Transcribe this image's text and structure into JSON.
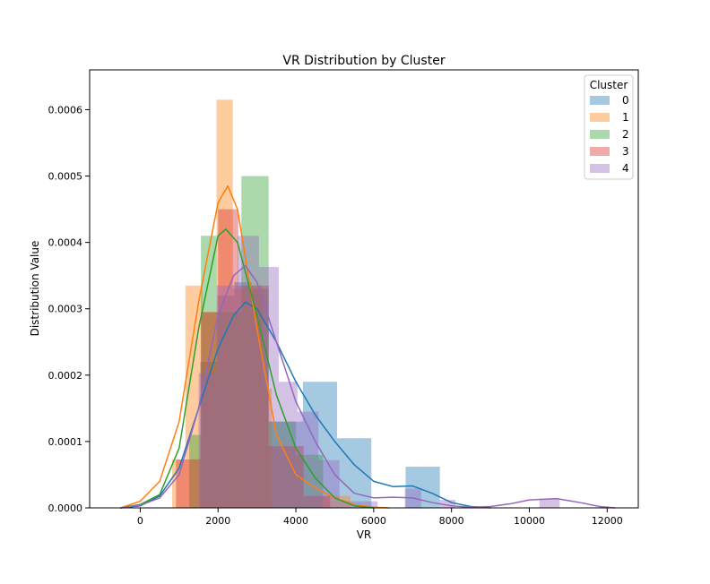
{
  "chart_data": {
    "type": "bar",
    "title": "VR Distribution by Cluster",
    "xlabel": "VR",
    "ylabel": "Distribution Value",
    "xlim": [
      -1300,
      12800
    ],
    "ylim": [
      0,
      0.00066
    ],
    "x_ticks": [
      0,
      2000,
      4000,
      6000,
      8000,
      10000,
      12000
    ],
    "x_tick_labels": [
      "0",
      "2000",
      "4000",
      "6000",
      "8000",
      "10000",
      "12000"
    ],
    "y_ticks": [
      0,
      0.0001,
      0.0002,
      0.0003,
      0.0004,
      0.0005,
      0.0006
    ],
    "y_tick_labels": [
      "0.0000",
      "0.0001",
      "0.0002",
      "0.0003",
      "0.0004",
      "0.0005",
      "0.0006"
    ],
    "grid": false,
    "legend": {
      "title": "Cluster",
      "position": "top-right"
    },
    "series": [
      {
        "name": "0",
        "color": "#1f77b4",
        "hist_bins": [
          {
            "x0": 1540,
            "x1": 1980,
            "y": 0.00022
          },
          {
            "x0": 1980,
            "x1": 2420,
            "y": 0.00032
          },
          {
            "x0": 2420,
            "x1": 2860,
            "y": 0.00034
          },
          {
            "x0": 2860,
            "x1": 3300,
            "y": 0.00033
          },
          {
            "x0": 3300,
            "x1": 4180,
            "y": 0.00013
          },
          {
            "x0": 4180,
            "x1": 5060,
            "y": 0.00019
          },
          {
            "x0": 5060,
            "x1": 5940,
            "y": 0.000105
          },
          {
            "x0": 6820,
            "x1": 7700,
            "y": 6.2e-05
          }
        ],
        "kde": [
          [
            -500,
            0.0
          ],
          [
            0,
            3e-06
          ],
          [
            500,
            1.8e-05
          ],
          [
            1000,
            6e-05
          ],
          [
            1500,
            0.00015
          ],
          [
            2000,
            0.00024
          ],
          [
            2400,
            0.00029
          ],
          [
            2700,
            0.00031
          ],
          [
            3000,
            0.0003
          ],
          [
            3500,
            0.00025
          ],
          [
            4000,
            0.00019
          ],
          [
            4500,
            0.00014
          ],
          [
            5000,
            0.0001
          ],
          [
            5500,
            6.5e-05
          ],
          [
            6000,
            4e-05
          ],
          [
            6500,
            3.2e-05
          ],
          [
            7000,
            3.3e-05
          ],
          [
            7500,
            2.2e-05
          ],
          [
            8000,
            8e-06
          ],
          [
            8500,
            2e-06
          ],
          [
            9000,
            0.0
          ]
        ]
      },
      {
        "name": "1",
        "color": "#ff7f0e",
        "hist_bins": [
          {
            "x0": 820,
            "x1": 1160,
            "y": 7.3e-05
          },
          {
            "x0": 1160,
            "x1": 1600,
            "y": 0.000335
          },
          {
            "x0": 1600,
            "x1": 1960,
            "y": 0.000295
          },
          {
            "x0": 1960,
            "x1": 2380,
            "y": 0.000615
          },
          {
            "x0": 2380,
            "x1": 2720,
            "y": 0.00033
          },
          {
            "x0": 2720,
            "x1": 3140,
            "y": 0.000335
          },
          {
            "x0": 3140,
            "x1": 3380,
            "y": 0.00018
          },
          {
            "x0": 4700,
            "x1": 5400,
            "y": 1.8e-05
          }
        ],
        "kde": [
          [
            -500,
            0.0
          ],
          [
            0,
            1e-05
          ],
          [
            500,
            4e-05
          ],
          [
            1000,
            0.00013
          ],
          [
            1500,
            0.00031
          ],
          [
            2000,
            0.00046
          ],
          [
            2250,
            0.000485
          ],
          [
            2500,
            0.00045
          ],
          [
            3000,
            0.00027
          ],
          [
            3500,
            0.00011
          ],
          [
            4000,
            5e-05
          ],
          [
            4500,
            3e-05
          ],
          [
            5000,
            1.5e-05
          ],
          [
            5500,
            5e-06
          ],
          [
            6000,
            1e-06
          ],
          [
            6400,
            0.0
          ]
        ]
      },
      {
        "name": "2",
        "color": "#2ca02c",
        "hist_bins": [
          {
            "x0": 1260,
            "x1": 1560,
            "y": 0.00011
          },
          {
            "x0": 1560,
            "x1": 1960,
            "y": 0.00041
          },
          {
            "x0": 1960,
            "x1": 2600,
            "y": 0.000295
          },
          {
            "x0": 2600,
            "x1": 3300,
            "y": 0.0005
          },
          {
            "x0": 3300,
            "x1": 4000,
            "y": 0.00013
          },
          {
            "x0": 4000,
            "x1": 4700,
            "y": 8e-05
          }
        ],
        "kde": [
          [
            -500,
            0.0
          ],
          [
            0,
            5e-06
          ],
          [
            500,
            2e-05
          ],
          [
            1000,
            9e-05
          ],
          [
            1500,
            0.00027
          ],
          [
            2000,
            0.00041
          ],
          [
            2200,
            0.00042
          ],
          [
            2500,
            0.0004
          ],
          [
            3000,
            0.00029
          ],
          [
            3500,
            0.00017
          ],
          [
            4000,
            9e-05
          ],
          [
            4500,
            4.5e-05
          ],
          [
            5000,
            1.5e-05
          ],
          [
            5500,
            3e-06
          ],
          [
            6000,
            0.0
          ]
        ]
      },
      {
        "name": "3",
        "color": "#d62728",
        "hist_bins": [
          {
            "x0": 920,
            "x1": 1560,
            "y": 7.3e-05
          },
          {
            "x0": 1560,
            "x1": 2000,
            "y": 0.000295
          },
          {
            "x0": 2000,
            "x1": 2520,
            "y": 0.00045
          },
          {
            "x0": 2520,
            "x1": 3300,
            "y": 0.000335
          },
          {
            "x0": 3300,
            "x1": 4200,
            "y": 9.3e-05
          },
          {
            "x0": 4200,
            "x1": 4880,
            "y": 1.8e-05
          }
        ],
        "kde": []
      },
      {
        "name": "4",
        "color": "#9467bd",
        "hist_bins": [
          {
            "x0": 1500,
            "x1": 1960,
            "y": 0.000203
          },
          {
            "x0": 1960,
            "x1": 2500,
            "y": 0.000335
          },
          {
            "x0": 2500,
            "x1": 3050,
            "y": 0.00041
          },
          {
            "x0": 3050,
            "x1": 3560,
            "y": 0.000363
          },
          {
            "x0": 3560,
            "x1": 4040,
            "y": 0.00019
          },
          {
            "x0": 4040,
            "x1": 4580,
            "y": 0.000145
          },
          {
            "x0": 4580,
            "x1": 5120,
            "y": 7.2e-05
          },
          {
            "x0": 5120,
            "x1": 6100,
            "y": 1e-05
          },
          {
            "x0": 6800,
            "x1": 7220,
            "y": 2.9e-05
          },
          {
            "x0": 7700,
            "x1": 8100,
            "y": 1.2e-05
          },
          {
            "x0": 10260,
            "x1": 10780,
            "y": 1.4e-05
          }
        ],
        "kde": [
          [
            -500,
            0.0
          ],
          [
            0,
            4e-06
          ],
          [
            500,
            1.5e-05
          ],
          [
            1000,
            5e-05
          ],
          [
            1500,
            0.00015
          ],
          [
            2000,
            0.00029
          ],
          [
            2400,
            0.00035
          ],
          [
            2700,
            0.000365
          ],
          [
            3000,
            0.00034
          ],
          [
            3500,
            0.00025
          ],
          [
            4000,
            0.00016
          ],
          [
            4500,
            0.0001
          ],
          [
            5000,
            5e-05
          ],
          [
            5500,
            2.2e-05
          ],
          [
            6000,
            1.5e-05
          ],
          [
            6500,
            1.6e-05
          ],
          [
            7000,
            1.5e-05
          ],
          [
            7500,
            8e-06
          ],
          [
            8000,
            3e-06
          ],
          [
            8500,
            1e-06
          ],
          [
            9000,
            2e-06
          ],
          [
            9500,
            6e-06
          ],
          [
            10000,
            1.2e-05
          ],
          [
            10700,
            1.4e-05
          ],
          [
            11300,
            8e-06
          ],
          [
            11800,
            2e-06
          ],
          [
            12200,
            0.0
          ]
        ]
      }
    ]
  }
}
